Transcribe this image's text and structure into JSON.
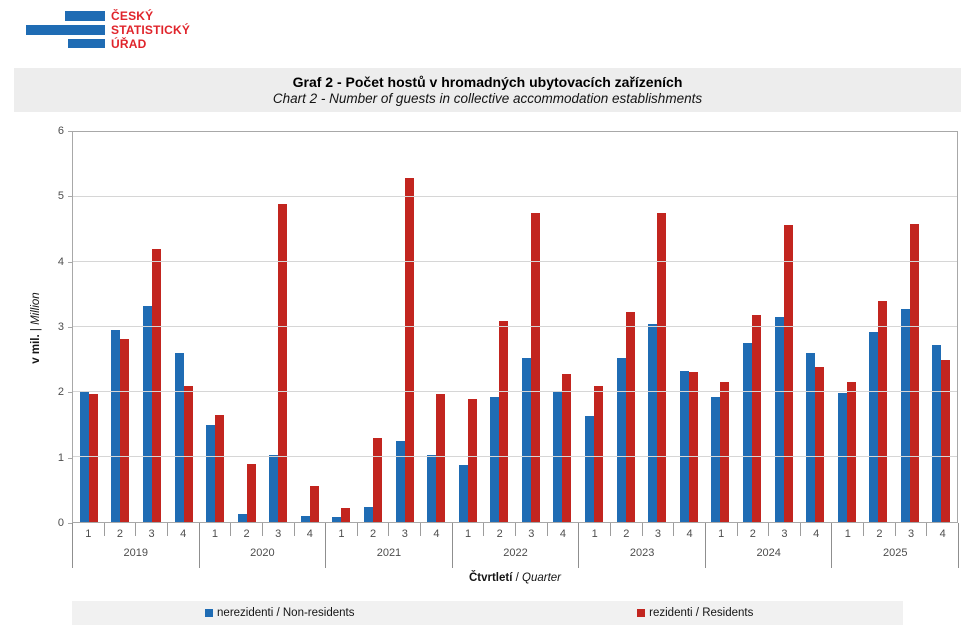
{
  "logo": {
    "line1": "ČESKÝ",
    "line2": "STATISTICKÝ",
    "line3": "ÚŘAD",
    "bar_color": "#1F6CB4",
    "text_color": "#E0242B"
  },
  "header": {
    "title": "Graf 2 - Počet hostů v hromadných ubytovacích zařízeních",
    "subtitle": "Chart 2 - Number of guests in collective accommodation establishments"
  },
  "chart_data": {
    "type": "bar",
    "title": "Graf 2 - Počet hostů v hromadných ubytovacích zařízeních",
    "subtitle": "Chart 2 - Number of guests in collective accommodation establishments",
    "ylabel_bold": "v mil.",
    "ylabel_sep": " | ",
    "ylabel_italic": "Million",
    "xlabel_bold": "Čtvrtletí",
    "xlabel_sep": " / ",
    "xlabel_italic": "Quarter",
    "ylim": [
      0,
      6
    ],
    "yticks": [
      0,
      1,
      2,
      3,
      4,
      5,
      6
    ],
    "grid": true,
    "legend_position": "bottom",
    "years": [
      "2019",
      "2020",
      "2021",
      "2022",
      "2023",
      "2024",
      "2025"
    ],
    "quarter_labels": [
      "1",
      "2",
      "3",
      "4"
    ],
    "series": [
      {
        "name": "nerezidenti / Non-residents",
        "color": "#1F6CB4",
        "values": [
          2.01,
          2.95,
          3.32,
          2.6,
          1.5,
          0.13,
          1.03,
          0.1,
          0.07,
          0.23,
          1.25,
          1.03,
          0.88,
          1.93,
          2.52,
          2.0,
          1.63,
          2.53,
          3.04,
          2.33,
          1.92,
          2.76,
          3.15,
          2.6,
          1.98,
          2.93,
          3.27,
          2.72
        ]
      },
      {
        "name": "rezidenti / Residents",
        "color": "#C2251F",
        "values": [
          1.97,
          2.82,
          4.2,
          2.09,
          1.65,
          0.9,
          4.9,
          0.56,
          0.22,
          1.3,
          5.3,
          1.97,
          1.9,
          3.1,
          4.76,
          2.28,
          2.1,
          3.23,
          4.76,
          2.31,
          2.15,
          3.19,
          4.57,
          2.39,
          2.16,
          3.4,
          4.58,
          2.49
        ]
      }
    ]
  }
}
